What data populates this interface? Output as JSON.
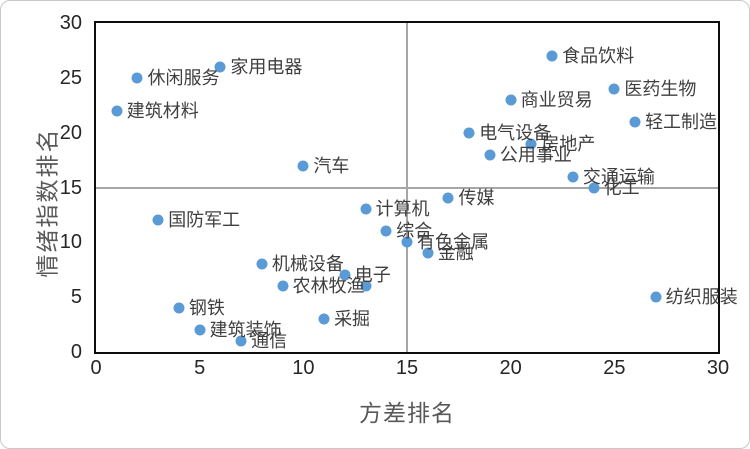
{
  "chart_data": {
    "type": "scatter",
    "title": "",
    "xlabel": "方差排名",
    "ylabel": "情绪指数排名",
    "xlim": [
      0,
      30
    ],
    "ylim": [
      0,
      30
    ],
    "x_ticks": [
      "0",
      "5",
      "10",
      "15",
      "20",
      "25",
      "30"
    ],
    "x_tick_values": [
      0,
      5,
      10,
      15,
      20,
      25,
      30
    ],
    "y_ticks": [
      "0",
      "5",
      "10",
      "15",
      "20",
      "25",
      "30"
    ],
    "y_tick_values": [
      0,
      5,
      10,
      15,
      20,
      25,
      30
    ],
    "grid": "off",
    "legend": "none",
    "reference_lines": {
      "vertical_x": 15,
      "horizontal_y": 15
    },
    "colors": {
      "marker": "#5B9BD5",
      "reference_line": "#A6A6A6",
      "plot_border": "#0D0D0D",
      "tick_text": "#262626",
      "point_label_text": "#3F3F3F",
      "axis_title_text": "#595959",
      "outer_frame_border": "#C9C9C9"
    },
    "points": [
      {
        "label": "建筑材料",
        "x": 1,
        "y": 22
      },
      {
        "label": "休闲服务",
        "x": 2,
        "y": 25
      },
      {
        "label": "国防军工",
        "x": 3,
        "y": 12
      },
      {
        "label": "钢铁",
        "x": 4,
        "y": 4
      },
      {
        "label": "建筑装饰",
        "x": 5,
        "y": 2
      },
      {
        "label": "家用电器",
        "x": 6,
        "y": 26
      },
      {
        "label": "通信",
        "x": 7,
        "y": 1
      },
      {
        "label": "机械设备",
        "x": 8,
        "y": 8
      },
      {
        "label": "农林牧渔",
        "x": 9,
        "y": 6
      },
      {
        "label": "汽车",
        "x": 10,
        "y": 17
      },
      {
        "label": "采掘",
        "x": 11,
        "y": 3
      },
      {
        "label": "电子",
        "x": 12,
        "y": 7
      },
      {
        "label": "",
        "x": 13,
        "y": 6
      },
      {
        "label": "计算机",
        "x": 13,
        "y": 13
      },
      {
        "label": "综合",
        "x": 14,
        "y": 11
      },
      {
        "label": "有色金属",
        "x": 15,
        "y": 10
      },
      {
        "label": "金融",
        "x": 16,
        "y": 9
      },
      {
        "label": "传媒",
        "x": 17,
        "y": 14
      },
      {
        "label": "电气设备",
        "x": 18,
        "y": 20
      },
      {
        "label": "公用事业",
        "x": 19,
        "y": 18
      },
      {
        "label": "商业贸易",
        "x": 20,
        "y": 23
      },
      {
        "label": "房地产",
        "x": 21,
        "y": 19
      },
      {
        "label": "食品饮料",
        "x": 22,
        "y": 27
      },
      {
        "label": "交通运输",
        "x": 23,
        "y": 16
      },
      {
        "label": "化工",
        "x": 24,
        "y": 15
      },
      {
        "label": "医药生物",
        "x": 25,
        "y": 24
      },
      {
        "label": "轻工制造",
        "x": 26,
        "y": 21
      },
      {
        "label": "纺织服装",
        "x": 27,
        "y": 5
      }
    ]
  }
}
